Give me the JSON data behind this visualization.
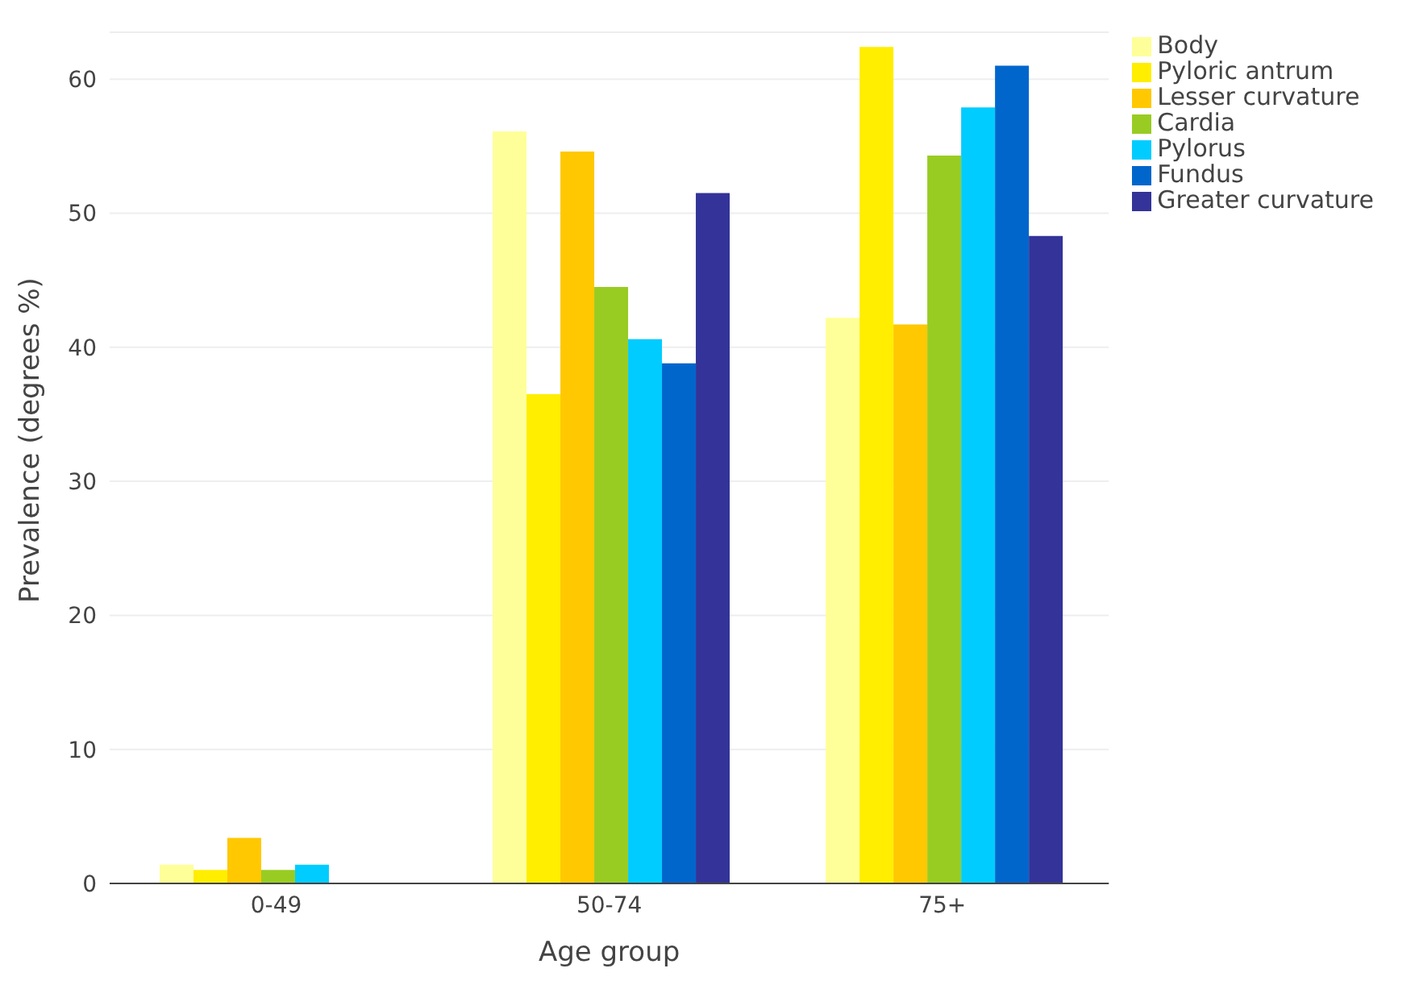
{
  "chart_data": {
    "type": "bar",
    "xlabel": "Age group",
    "ylabel": "Prevalence (degrees %)",
    "categories": [
      "0-49",
      "50-74",
      "75+"
    ],
    "ylim": [
      0,
      63.5
    ],
    "yticks": [
      0,
      10,
      20,
      30,
      40,
      50,
      60
    ],
    "grid": "y",
    "legend": "top right",
    "series": [
      {
        "name": "Body",
        "color": "#ffff99",
        "values": [
          1.4,
          56.1,
          42.2
        ]
      },
      {
        "name": "Pyloric antrum",
        "color": "#ffee00",
        "values": [
          1.0,
          36.5,
          62.4
        ]
      },
      {
        "name": "Lesser curvature",
        "color": "#ffc800",
        "values": [
          3.4,
          54.6,
          41.7
        ]
      },
      {
        "name": "Cardia",
        "color": "#99cc22",
        "values": [
          1.0,
          44.5,
          54.3
        ]
      },
      {
        "name": "Pylorus",
        "color": "#00ccff",
        "values": [
          1.4,
          40.6,
          57.9
        ]
      },
      {
        "name": "Fundus",
        "color": "#0066cc",
        "values": [
          0,
          38.8,
          61.0
        ]
      },
      {
        "name": "Greater curvature",
        "color": "#333399",
        "values": [
          0,
          51.5,
          48.3
        ]
      }
    ]
  }
}
